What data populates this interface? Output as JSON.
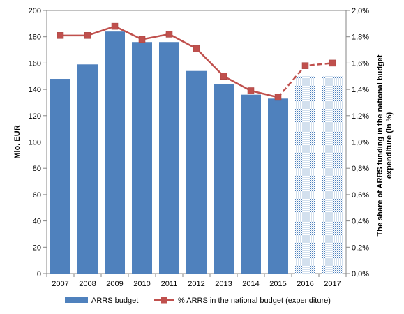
{
  "chart_data": {
    "type": "bar",
    "categories": [
      "2007",
      "2008",
      "2009",
      "2010",
      "2011",
      "2012",
      "2013",
      "2014",
      "2015",
      "2016",
      "2017"
    ],
    "series": [
      {
        "name": "ARRS budget",
        "kind": "bar",
        "axis": "left",
        "values": [
          148,
          159,
          184,
          176,
          176,
          154,
          144,
          136,
          133,
          150,
          150
        ],
        "projected_from_index": 9,
        "color": "#4f81bd"
      },
      {
        "name": "% ARRS in the national budget (expenditure)",
        "kind": "line",
        "axis": "right",
        "values": [
          1.81,
          1.81,
          1.88,
          1.78,
          1.82,
          1.71,
          1.5,
          1.39,
          1.34,
          1.58,
          1.6
        ],
        "dashed_from_index": 8,
        "color": "#c0504d"
      }
    ],
    "ylabel": "Mio. EUR",
    "ylabel_right": "The share of ARRS funding in the national budget expenditure (in %)",
    "ylim": [
      0,
      200
    ],
    "ylim_right": [
      0,
      2.0
    ],
    "yticks": [
      "0",
      "20",
      "40",
      "60",
      "80",
      "100",
      "120",
      "140",
      "160",
      "180",
      "200"
    ],
    "yticks_right": [
      "0,0%",
      "0,2%",
      "0,4%",
      "0,6%",
      "0,8%",
      "1,0%",
      "1,2%",
      "1,4%",
      "1,6%",
      "1,8%",
      "2,0%"
    ],
    "grid": false,
    "legend": "bottom"
  }
}
